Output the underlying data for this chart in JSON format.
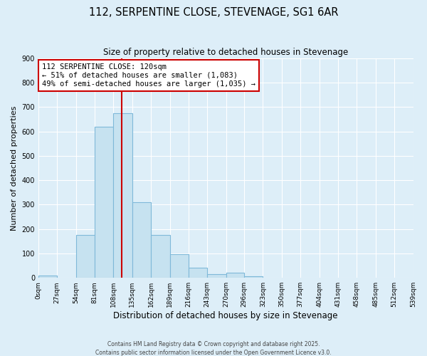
{
  "title": "112, SERPENTINE CLOSE, STEVENAGE, SG1 6AR",
  "subtitle": "Size of property relative to detached houses in Stevenage",
  "xlabel": "Distribution of detached houses by size in Stevenage",
  "ylabel": "Number of detached properties",
  "bar_edges": [
    0,
    27,
    54,
    81,
    108,
    135,
    162,
    189,
    216,
    243,
    270,
    296,
    323,
    350,
    377,
    404,
    431,
    458,
    485,
    512,
    539
  ],
  "bar_heights": [
    10,
    0,
    175,
    620,
    675,
    310,
    175,
    97,
    40,
    15,
    20,
    5,
    0,
    0,
    0,
    0,
    0,
    0,
    0,
    0
  ],
  "bar_color": "#c6e2f0",
  "bar_edge_color": "#7fb9d9",
  "bg_color": "#ddeef8",
  "grid_color": "#ffffff",
  "vline_x": 120,
  "vline_color": "#cc0000",
  "annotation_title": "112 SERPENTINE CLOSE: 120sqm",
  "annotation_line1": "← 51% of detached houses are smaller (1,083)",
  "annotation_line2": "49% of semi-detached houses are larger (1,035) →",
  "annotation_box_facecolor": "#ffffff",
  "annotation_box_edgecolor": "#cc0000",
  "ylim": [
    0,
    900
  ],
  "yticks": [
    0,
    100,
    200,
    300,
    400,
    500,
    600,
    700,
    800,
    900
  ],
  "footer1": "Contains HM Land Registry data © Crown copyright and database right 2025.",
  "footer2": "Contains public sector information licensed under the Open Government Licence v3.0."
}
